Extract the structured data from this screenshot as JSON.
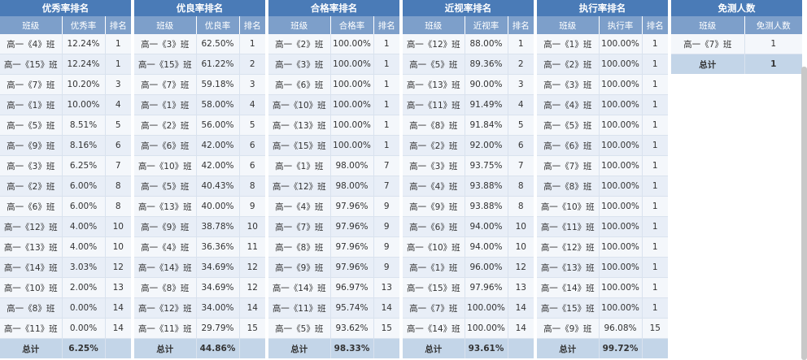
{
  "panels": [
    {
      "title": "优秀率排名",
      "headers": [
        "班级",
        "优秀率",
        "排名"
      ],
      "rows": [
        [
          "高一《4》班",
          "12.24%",
          "1"
        ],
        [
          "高一《15》班",
          "12.24%",
          "1"
        ],
        [
          "高一《7》班",
          "10.20%",
          "3"
        ],
        [
          "高一《1》班",
          "10.00%",
          "4"
        ],
        [
          "高一《5》班",
          "8.51%",
          "5"
        ],
        [
          "高一《9》班",
          "8.16%",
          "6"
        ],
        [
          "高一《3》班",
          "6.25%",
          "7"
        ],
        [
          "高一《2》班",
          "6.00%",
          "8"
        ],
        [
          "高一《6》班",
          "6.00%",
          "8"
        ],
        [
          "高一《12》班",
          "4.00%",
          "10"
        ],
        [
          "高一《13》班",
          "4.00%",
          "10"
        ],
        [
          "高一《14》班",
          "3.03%",
          "12"
        ],
        [
          "高一《10》班",
          "2.00%",
          "13"
        ],
        [
          "高一《8》班",
          "0.00%",
          "14"
        ],
        [
          "高一《11》班",
          "0.00%",
          "14"
        ]
      ],
      "total": [
        "总计",
        "6.25%",
        ""
      ]
    },
    {
      "title": "优良率排名",
      "headers": [
        "班级",
        "优良率",
        "排名"
      ],
      "rows": [
        [
          "高一《3》班",
          "62.50%",
          "1"
        ],
        [
          "高一《15》班",
          "61.22%",
          "2"
        ],
        [
          "高一《7》班",
          "59.18%",
          "3"
        ],
        [
          "高一《1》班",
          "58.00%",
          "4"
        ],
        [
          "高一《2》班",
          "56.00%",
          "5"
        ],
        [
          "高一《6》班",
          "42.00%",
          "6"
        ],
        [
          "高一《10》班",
          "42.00%",
          "6"
        ],
        [
          "高一《5》班",
          "40.43%",
          "8"
        ],
        [
          "高一《13》班",
          "40.00%",
          "9"
        ],
        [
          "高一《9》班",
          "38.78%",
          "10"
        ],
        [
          "高一《4》班",
          "36.36%",
          "11"
        ],
        [
          "高一《14》班",
          "34.69%",
          "12"
        ],
        [
          "高一《8》班",
          "34.69%",
          "12"
        ],
        [
          "高一《12》班",
          "34.00%",
          "14"
        ],
        [
          "高一《11》班",
          "29.79%",
          "15"
        ]
      ],
      "total": [
        "总计",
        "44.86%",
        ""
      ]
    },
    {
      "title": "合格率排名",
      "headers": [
        "班级",
        "合格率",
        "排名"
      ],
      "rows": [
        [
          "高一《2》班",
          "100.00%",
          "1"
        ],
        [
          "高一《3》班",
          "100.00%",
          "1"
        ],
        [
          "高一《6》班",
          "100.00%",
          "1"
        ],
        [
          "高一《10》班",
          "100.00%",
          "1"
        ],
        [
          "高一《13》班",
          "100.00%",
          "1"
        ],
        [
          "高一《15》班",
          "100.00%",
          "1"
        ],
        [
          "高一《1》班",
          "98.00%",
          "7"
        ],
        [
          "高一《12》班",
          "98.00%",
          "7"
        ],
        [
          "高一《4》班",
          "97.96%",
          "9"
        ],
        [
          "高一《7》班",
          "97.96%",
          "9"
        ],
        [
          "高一《8》班",
          "97.96%",
          "9"
        ],
        [
          "高一《9》班",
          "97.96%",
          "9"
        ],
        [
          "高一《14》班",
          "96.97%",
          "13"
        ],
        [
          "高一《11》班",
          "95.74%",
          "14"
        ],
        [
          "高一《5》班",
          "93.62%",
          "15"
        ]
      ],
      "total": [
        "总计",
        "98.33%",
        ""
      ]
    },
    {
      "title": "近视率排名",
      "headers": [
        "班级",
        "近视率",
        "排名"
      ],
      "rows": [
        [
          "高一《12》班",
          "88.00%",
          "1"
        ],
        [
          "高一《5》班",
          "89.36%",
          "2"
        ],
        [
          "高一《13》班",
          "90.00%",
          "3"
        ],
        [
          "高一《11》班",
          "91.49%",
          "4"
        ],
        [
          "高一《8》班",
          "91.84%",
          "5"
        ],
        [
          "高一《2》班",
          "92.00%",
          "6"
        ],
        [
          "高一《3》班",
          "93.75%",
          "7"
        ],
        [
          "高一《4》班",
          "93.88%",
          "8"
        ],
        [
          "高一《9》班",
          "93.88%",
          "8"
        ],
        [
          "高一《6》班",
          "94.00%",
          "10"
        ],
        [
          "高一《10》班",
          "94.00%",
          "10"
        ],
        [
          "高一《1》班",
          "96.00%",
          "12"
        ],
        [
          "高一《15》班",
          "97.96%",
          "13"
        ],
        [
          "高一《7》班",
          "100.00%",
          "14"
        ],
        [
          "高一《14》班",
          "100.00%",
          "14"
        ]
      ],
      "total": [
        "总计",
        "93.61%",
        ""
      ]
    },
    {
      "title": "执行率排名",
      "headers": [
        "班级",
        "执行率",
        "排名"
      ],
      "rows": [
        [
          "高一《1》班",
          "100.00%",
          "1"
        ],
        [
          "高一《2》班",
          "100.00%",
          "1"
        ],
        [
          "高一《3》班",
          "100.00%",
          "1"
        ],
        [
          "高一《4》班",
          "100.00%",
          "1"
        ],
        [
          "高一《5》班",
          "100.00%",
          "1"
        ],
        [
          "高一《6》班",
          "100.00%",
          "1"
        ],
        [
          "高一《7》班",
          "100.00%",
          "1"
        ],
        [
          "高一《8》班",
          "100.00%",
          "1"
        ],
        [
          "高一《10》班",
          "100.00%",
          "1"
        ],
        [
          "高一《11》班",
          "100.00%",
          "1"
        ],
        [
          "高一《12》班",
          "100.00%",
          "1"
        ],
        [
          "高一《13》班",
          "100.00%",
          "1"
        ],
        [
          "高一《14》班",
          "100.00%",
          "1"
        ],
        [
          "高一《15》班",
          "100.00%",
          "1"
        ],
        [
          "高一《9》班",
          "96.08%",
          "15"
        ]
      ],
      "total": [
        "总计",
        "99.72%",
        ""
      ]
    },
    {
      "title": "免测人数",
      "headers": [
        "班级",
        "免测人数"
      ],
      "rows": [
        [
          "高一《7》班",
          "1"
        ]
      ],
      "total": [
        "总计",
        "1"
      ]
    }
  ],
  "colors": {
    "title_bg": "#4a7bb7",
    "header_bg": "#7d9fca",
    "row_odd": "#f4f7fb",
    "row_even": "#e8eef7",
    "total_bg": "#c3d5e8"
  }
}
